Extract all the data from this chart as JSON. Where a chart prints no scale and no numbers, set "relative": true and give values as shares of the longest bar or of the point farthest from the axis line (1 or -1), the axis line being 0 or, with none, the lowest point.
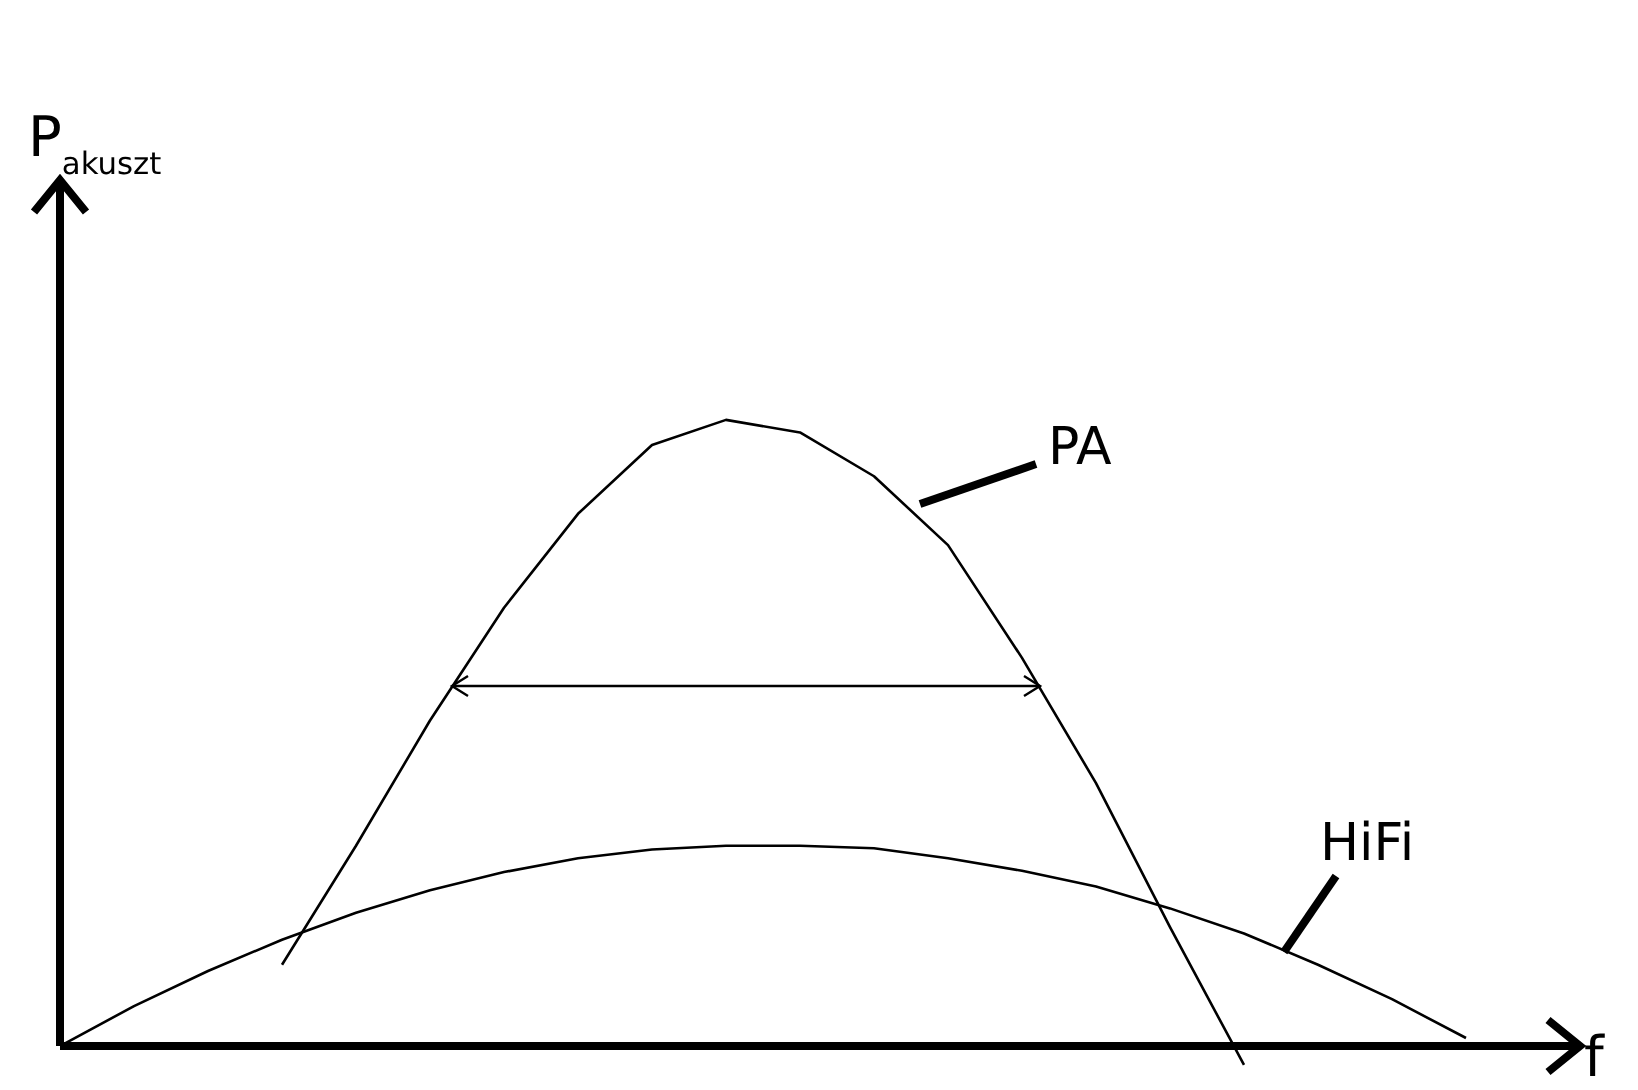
{
  "chart_data": {
    "type": "line",
    "relative": true,
    "xlabel": "f",
    "ylabel": "P$_{akuszt}$",
    "categories": [
      null,
      null,
      null,
      null,
      null,
      null,
      null,
      null,
      null,
      null,
      null,
      null,
      null,
      null,
      null,
      null,
      null,
      null,
      null,
      null,
      null
    ],
    "series": [
      {
        "name": "PA",
        "color": "#000000",
        "values": [
          null,
          null,
          null,
          0.13,
          0.32,
          0.52,
          0.7,
          0.85,
          0.96,
          1.0,
          0.98,
          0.91,
          0.8,
          0.62,
          0.42,
          0.19,
          -0.03,
          null,
          null,
          null,
          null
        ]
      },
      {
        "name": "HiFi",
        "color": "#000000",
        "values": [
          0,
          0.064,
          0.12,
          0.17,
          0.213,
          0.249,
          0.278,
          0.3,
          0.314,
          0.32,
          0.32,
          0.316,
          0.3,
          0.28,
          0.255,
          0.22,
          0.18,
          0.13,
          0.075,
          0.013,
          null
        ]
      }
    ],
    "marker": "none",
    "line_style": "solid"
  }
}
